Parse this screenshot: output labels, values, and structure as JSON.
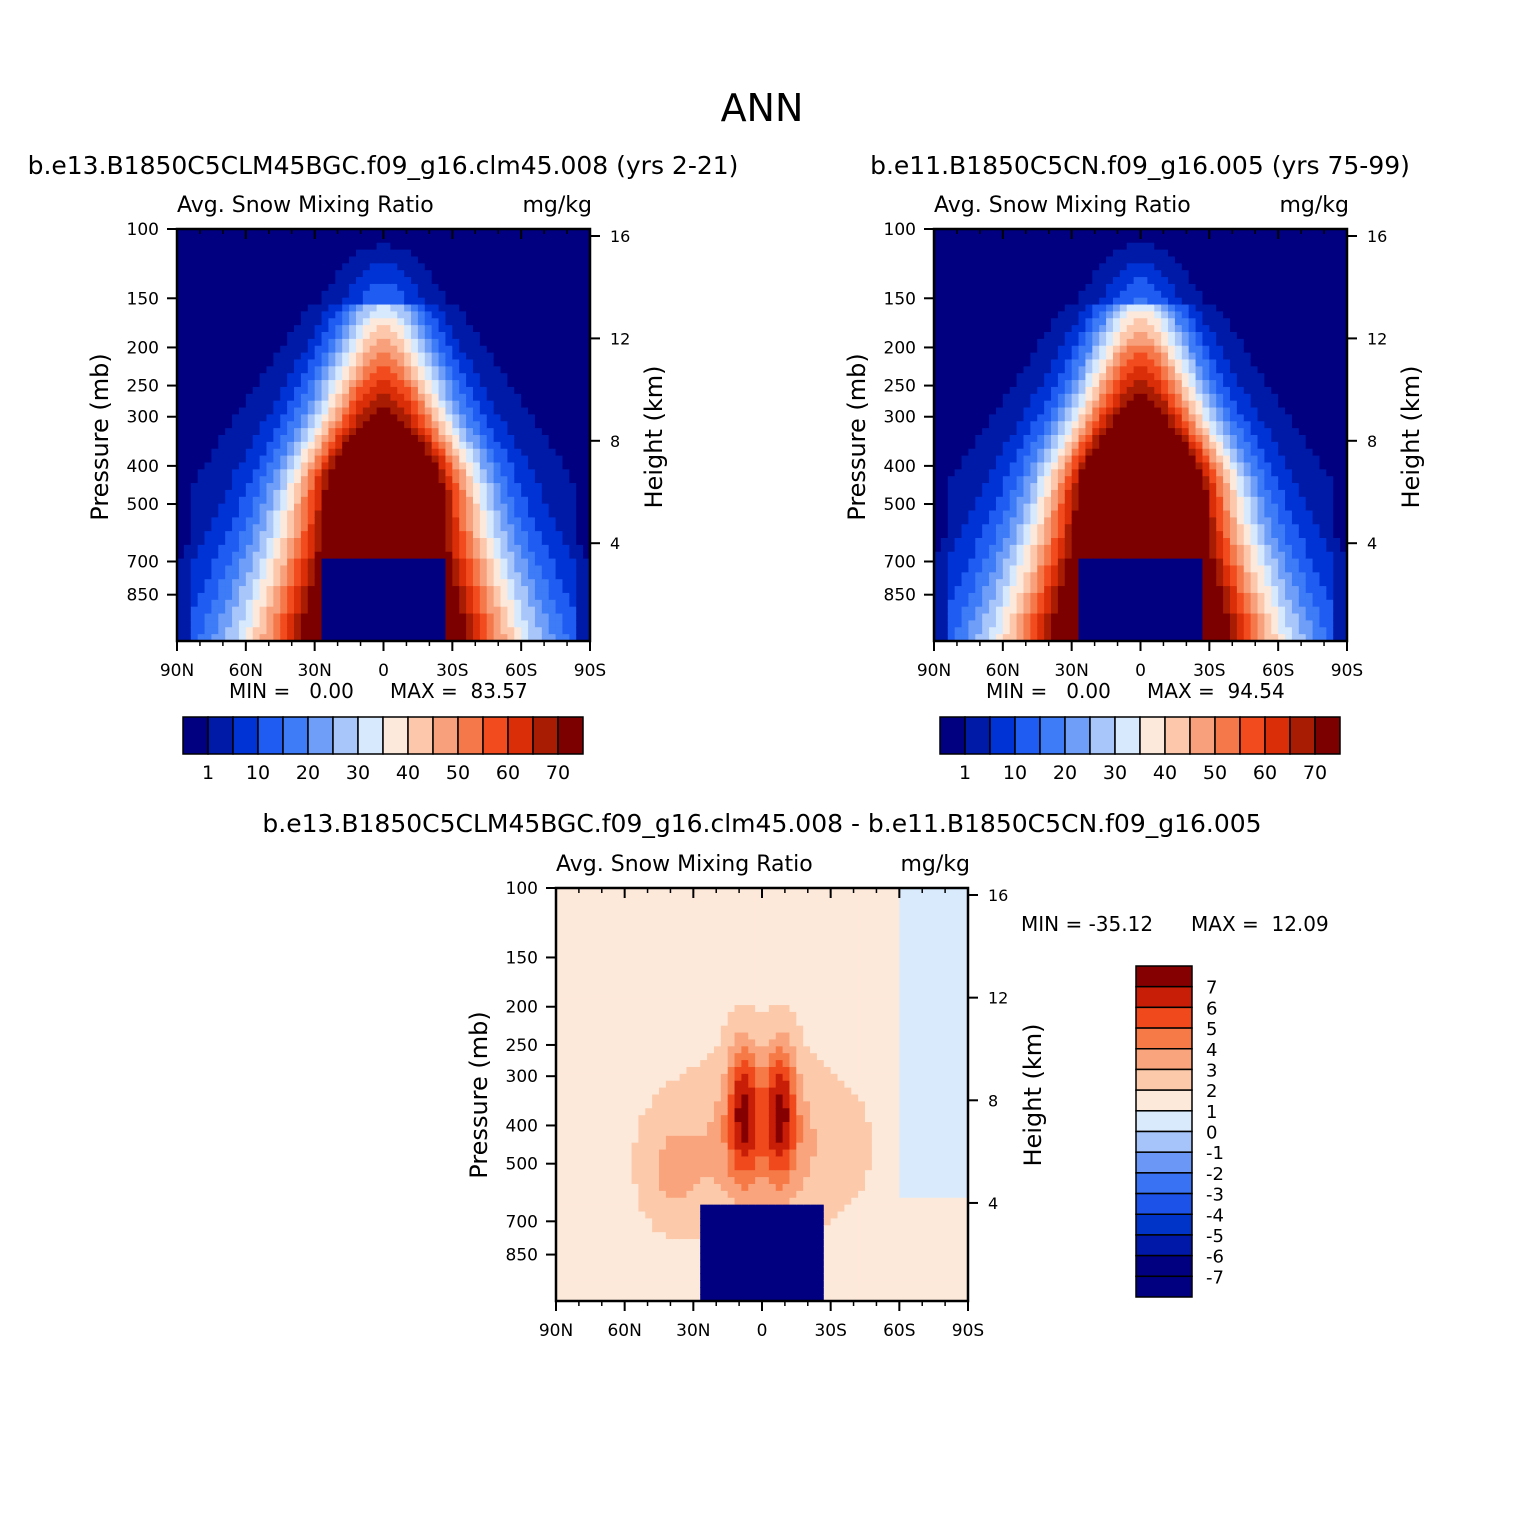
{
  "figure": {
    "title": "ANN"
  },
  "palettes": {
    "abs": [
      "#000080",
      "#001aa8",
      "#0033d6",
      "#1f5cf2",
      "#3d7bf7",
      "#6f9ef8",
      "#a9c6fb",
      "#d7e9fc",
      "#fde9dc",
      "#fcc7ab",
      "#f7a07b",
      "#f5784a",
      "#f24c1e",
      "#d92e08",
      "#a81c04",
      "#7d0000"
    ],
    "diff": [
      "#000080",
      "#0018a8",
      "#0033c8",
      "#1c52e8",
      "#3a72f4",
      "#6b98f6",
      "#a6c4fa",
      "#d9eafc",
      "#fde9da",
      "#fccaab",
      "#f9a47c",
      "#f67a48",
      "#f04a1c",
      "#c81e08",
      "#850000"
    ]
  },
  "chart_data": [
    {
      "type": "heatmap",
      "case": "b.e13.B1850C5CLM45BGC.f09_g16.clm45.008 (yrs 2-21)",
      "title": "Avg. Snow Mixing Ratio",
      "units": "mg/kg",
      "xlabel": "",
      "ylabel": "Pressure (mb)",
      "y2label": "Height (km)",
      "x_ticks": [
        "90N",
        "60N",
        "30N",
        "0",
        "30S",
        "60S",
        "90S"
      ],
      "y_ticks": [
        100,
        150,
        200,
        250,
        300,
        400,
        500,
        700,
        850
      ],
      "y2_ticks": [
        16,
        12,
        8,
        4
      ],
      "min_label": "MIN =   0.00",
      "max_label": "MAX =  83.57",
      "min": 0.0,
      "max": 83.57,
      "colorbar": {
        "orientation": "horizontal",
        "labels": [
          "1",
          "10",
          "20",
          "30",
          "40",
          "50",
          "60",
          "70"
        ]
      }
    },
    {
      "type": "heatmap",
      "case": "b.e11.B1850C5CN.f09_g16.005 (yrs 75-99)",
      "title": "Avg. Snow Mixing Ratio",
      "units": "mg/kg",
      "xlabel": "",
      "ylabel": "Pressure (mb)",
      "y2label": "Height (km)",
      "x_ticks": [
        "90N",
        "60N",
        "30N",
        "0",
        "30S",
        "60S",
        "90S"
      ],
      "y_ticks": [
        100,
        150,
        200,
        250,
        300,
        400,
        500,
        700,
        850
      ],
      "y2_ticks": [
        16,
        12,
        8,
        4
      ],
      "min_label": "MIN =   0.00",
      "max_label": "MAX =  94.54",
      "min": 0.0,
      "max": 94.54,
      "colorbar": {
        "orientation": "horizontal",
        "labels": [
          "1",
          "10",
          "20",
          "30",
          "40",
          "50",
          "60",
          "70"
        ]
      }
    },
    {
      "type": "heatmap",
      "case": "b.e13.B1850C5CLM45BGC.f09_g16.clm45.008 - b.e11.B1850C5CN.f09_g16.005",
      "title": "Avg. Snow Mixing Ratio",
      "units": "mg/kg",
      "xlabel": "",
      "ylabel": "Pressure (mb)",
      "y2label": "Height (km)",
      "x_ticks": [
        "90N",
        "60N",
        "30N",
        "0",
        "30S",
        "60S",
        "90S"
      ],
      "y_ticks": [
        100,
        150,
        200,
        250,
        300,
        400,
        500,
        700,
        850
      ],
      "y2_ticks": [
        16,
        12,
        8,
        4
      ],
      "min_label": "MIN = -35.12",
      "max_label": "MAX =  12.09",
      "min": -35.12,
      "max": 12.09,
      "colorbar": {
        "orientation": "vertical",
        "labels": [
          "7",
          "6",
          "5",
          "4",
          "3",
          "2",
          "1",
          "0",
          "-1",
          "-2",
          "-3",
          "-4",
          "-5",
          "-6",
          "-7"
        ]
      }
    }
  ]
}
